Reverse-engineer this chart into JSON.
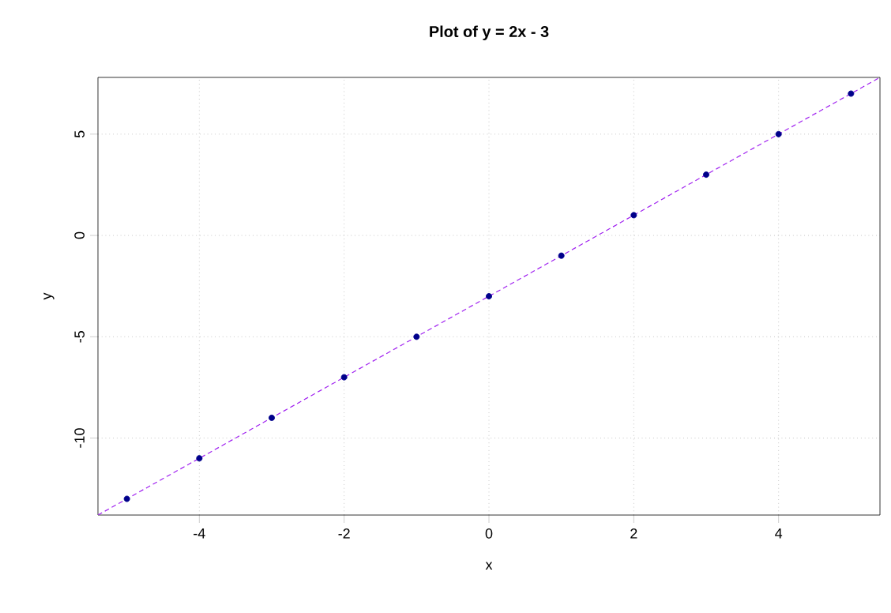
{
  "chart_data": {
    "type": "scatter",
    "title": "Plot of y = 2x - 3",
    "xlabel": "x",
    "ylabel": "y",
    "xlim": [
      -5.4,
      5.4
    ],
    "ylim": [
      -13.8,
      7.8
    ],
    "xticks": [
      -4,
      -2,
      0,
      2,
      4
    ],
    "yticks": [
      -10,
      -5,
      0,
      5
    ],
    "grid": true,
    "series": [
      {
        "color": "#00008b",
        "marker": "circle",
        "x": [
          -5,
          -4,
          -3,
          -2,
          -1,
          0,
          1,
          2,
          3,
          4,
          5
        ],
        "values": [
          -13,
          -11,
          -9,
          -7,
          -5,
          -3,
          -1,
          1,
          3,
          5,
          7
        ]
      },
      {
        "type": "line",
        "color": "#a020f0",
        "line_style": "dashed",
        "marker": "none",
        "x": [
          -5.4,
          5.4
        ],
        "values": [
          -13.8,
          7.8
        ]
      }
    ]
  }
}
